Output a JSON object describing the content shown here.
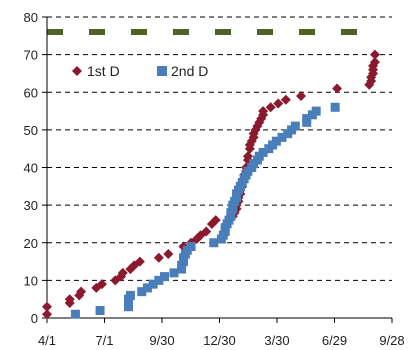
{
  "chart_data": {
    "type": "scatter",
    "title": "",
    "xlabel": "",
    "ylabel": "",
    "x_tick_labels": [
      "4/1",
      "7/1",
      "9/30",
      "12/30",
      "3/30",
      "6/29",
      "9/28"
    ],
    "xlim": [
      "4/1",
      "9/28"
    ],
    "ylim": [
      0,
      80
    ],
    "y_ticks": [
      0,
      10,
      20,
      30,
      40,
      50,
      60,
      70,
      80
    ],
    "y_tick_labels": [
      "0",
      "10",
      "20",
      "30",
      "40",
      "50",
      "60",
      "70",
      "80"
    ],
    "grid": "horizontal-dashed",
    "legend_position": "top-left",
    "reference_line": {
      "y": 76,
      "color": "#4f6228",
      "style": "dashed"
    },
    "series": [
      {
        "name": "1st D",
        "marker": "diamond",
        "color": "#8b1a2e",
        "points": [
          [
            0,
            1
          ],
          [
            0,
            3
          ],
          [
            12,
            4
          ],
          [
            12,
            5
          ],
          [
            17,
            6
          ],
          [
            18,
            7
          ],
          [
            26,
            8
          ],
          [
            29,
            9
          ],
          [
            36,
            10
          ],
          [
            39,
            11
          ],
          [
            40,
            12
          ],
          [
            44,
            13
          ],
          [
            46,
            14
          ],
          [
            49,
            15
          ],
          [
            59,
            16
          ],
          [
            64,
            17
          ],
          [
            72,
            19
          ],
          [
            76,
            20
          ],
          [
            79,
            21
          ],
          [
            81,
            22
          ],
          [
            84,
            23
          ],
          [
            87,
            25
          ],
          [
            89,
            26
          ],
          [
            98,
            27
          ],
          [
            99,
            28
          ],
          [
            100,
            29
          ],
          [
            100,
            30
          ],
          [
            101,
            31
          ],
          [
            101,
            32
          ],
          [
            102,
            33
          ],
          [
            102,
            34
          ],
          [
            103,
            35
          ],
          [
            103,
            36
          ],
          [
            104,
            37
          ],
          [
            104,
            38
          ],
          [
            105,
            39
          ],
          [
            105,
            40
          ],
          [
            106,
            42
          ],
          [
            106,
            43
          ],
          [
            107,
            45
          ],
          [
            107,
            46
          ],
          [
            108,
            47
          ],
          [
            109,
            48
          ],
          [
            109,
            49
          ],
          [
            110,
            50
          ],
          [
            111,
            51
          ],
          [
            112,
            52
          ],
          [
            113,
            53
          ],
          [
            114,
            54
          ],
          [
            114,
            55
          ],
          [
            118,
            56
          ],
          [
            122,
            57
          ],
          [
            126,
            58
          ],
          [
            134,
            59
          ],
          [
            153,
            61
          ],
          [
            170,
            62
          ],
          [
            171,
            63
          ],
          [
            171,
            64
          ],
          [
            172,
            65
          ],
          [
            172,
            66
          ],
          [
            172,
            67
          ],
          [
            173,
            68
          ],
          [
            173,
            70
          ]
        ]
      },
      {
        "name": "2nd D",
        "marker": "square",
        "color": "#4a7ebb",
        "points": [
          [
            15,
            1
          ],
          [
            28,
            2
          ],
          [
            43,
            3
          ],
          [
            43,
            4
          ],
          [
            43,
            5
          ],
          [
            44,
            6
          ],
          [
            50,
            7
          ],
          [
            53,
            8
          ],
          [
            56,
            9
          ],
          [
            59,
            10
          ],
          [
            62,
            11
          ],
          [
            67,
            12
          ],
          [
            71,
            13
          ],
          [
            71,
            14
          ],
          [
            72,
            15
          ],
          [
            72,
            16
          ],
          [
            73,
            17
          ],
          [
            74,
            18
          ],
          [
            76,
            19
          ],
          [
            88,
            20
          ],
          [
            92,
            21
          ],
          [
            93,
            22
          ],
          [
            94,
            23
          ],
          [
            94,
            24
          ],
          [
            95,
            25
          ],
          [
            96,
            26
          ],
          [
            97,
            27
          ],
          [
            97,
            28
          ],
          [
            98,
            29
          ],
          [
            98,
            30
          ],
          [
            99,
            31
          ],
          [
            100,
            32
          ],
          [
            100,
            33
          ],
          [
            101,
            34
          ],
          [
            102,
            35
          ],
          [
            103,
            36
          ],
          [
            104,
            37
          ],
          [
            105,
            38
          ],
          [
            106,
            39
          ],
          [
            108,
            40
          ],
          [
            109,
            41
          ],
          [
            111,
            42
          ],
          [
            112,
            43
          ],
          [
            114,
            44
          ],
          [
            117,
            45
          ],
          [
            119,
            46
          ],
          [
            121,
            47
          ],
          [
            124,
            48
          ],
          [
            127,
            49
          ],
          [
            129,
            50
          ],
          [
            131,
            51
          ],
          [
            137,
            52
          ],
          [
            137,
            53
          ],
          [
            140,
            54
          ],
          [
            142,
            55
          ],
          [
            152,
            56
          ]
        ]
      }
    ]
  }
}
